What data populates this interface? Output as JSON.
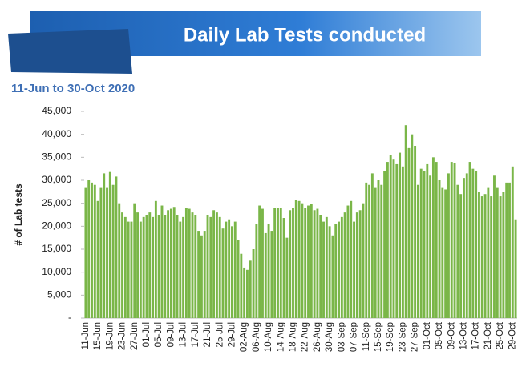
{
  "chart_data": {
    "type": "bar",
    "title": "Daily Lab Tests conducted",
    "subtitle": "11-Jun to 30-Oct  2020",
    "y_label": "# of Lab tests",
    "color": "#7ab648",
    "categories": [
      "11-Jun",
      null,
      null,
      null,
      "15-Jun",
      null,
      null,
      null,
      "19-Jun",
      null,
      null,
      null,
      "23-Jun",
      null,
      null,
      null,
      "27-Jun",
      null,
      null,
      null,
      "01-Jul",
      null,
      null,
      null,
      "05-Jul",
      null,
      null,
      null,
      "09-Jul",
      null,
      null,
      null,
      "13-Jul",
      null,
      null,
      null,
      "17-Jul",
      null,
      null,
      null,
      "21-Jul",
      null,
      null,
      null,
      "25-Jul",
      null,
      null,
      null,
      "29-Jul",
      null,
      null,
      null,
      "02-Aug",
      null,
      null,
      null,
      "06-Aug",
      null,
      null,
      null,
      "10-Aug",
      null,
      null,
      null,
      "14-Aug",
      null,
      null,
      null,
      "18-Aug",
      null,
      null,
      null,
      "22-Aug",
      null,
      null,
      null,
      "26-Aug",
      null,
      null,
      null,
      "30-Aug",
      null,
      null,
      null,
      "03-Sep",
      null,
      null,
      null,
      "07-Sep",
      null,
      null,
      null,
      "11-Sep",
      null,
      null,
      null,
      "15-Sep",
      null,
      null,
      null,
      "19-Sep",
      null,
      null,
      null,
      "23-Sep",
      null,
      null,
      null,
      "27-Sep",
      null,
      null,
      null,
      "01-Oct",
      null,
      null,
      null,
      "05-Oct",
      null,
      null,
      null,
      "09-Oct",
      null,
      null,
      null,
      "13-Oct",
      null,
      null,
      null,
      "17-Oct",
      null,
      null,
      null,
      "21-Oct",
      null,
      null,
      null,
      "25-Oct",
      null,
      null,
      null,
      "29-Oct",
      null
    ],
    "values": [
      28500,
      30000,
      29500,
      29000,
      25500,
      28500,
      31500,
      28500,
      31800,
      29000,
      30800,
      25000,
      23000,
      22000,
      21000,
      21000,
      25000,
      23000,
      21000,
      22000,
      22500,
      23000,
      22000,
      25500,
      22500,
      24500,
      22500,
      23500,
      23800,
      24200,
      22500,
      21000,
      22000,
      24000,
      23800,
      23000,
      22500,
      19000,
      18000,
      19000,
      22500,
      22000,
      23500,
      23000,
      22000,
      19500,
      21000,
      21500,
      20000,
      21000,
      17000,
      14000,
      11000,
      10500,
      12500,
      15000,
      20500,
      24500,
      23800,
      18500,
      20500,
      19000,
      24000,
      24000,
      24000,
      21800,
      17500,
      23500,
      24000,
      25800,
      25500,
      25000,
      24000,
      24500,
      24800,
      23500,
      23800,
      22500,
      21000,
      22000,
      20000,
      18000,
      20500,
      21000,
      22000,
      23000,
      24500,
      25500,
      21000,
      23000,
      23500,
      25000,
      29500,
      29000,
      31500,
      28500,
      30000,
      29000,
      32000,
      34000,
      35500,
      34500,
      33500,
      36000,
      33000,
      42000,
      37000,
      40000,
      37500,
      29000,
      32500,
      32000,
      33500,
      31000,
      35000,
      34000,
      30000,
      28500,
      28000,
      31500,
      34000,
      33800,
      29000,
      27000,
      30500,
      31500,
      34000,
      32500,
      32000,
      27500,
      26500,
      27000,
      28500,
      26500,
      31000,
      28500,
      26500,
      27500,
      29500,
      29500,
      33000,
      21500
    ],
    "ylim": [
      0,
      45000
    ],
    "yticks": [
      {
        "value": 0,
        "label": "-"
      },
      {
        "value": 5000,
        "label": "5,000"
      },
      {
        "value": 10000,
        "label": "10,000"
      },
      {
        "value": 15000,
        "label": "15,000"
      },
      {
        "value": 20000,
        "label": "20,000"
      },
      {
        "value": 25000,
        "label": "25,000"
      },
      {
        "value": 30000,
        "label": "30,000"
      },
      {
        "value": 35000,
        "label": "35,000"
      },
      {
        "value": 40000,
        "label": "40,000"
      },
      {
        "value": 45000,
        "label": "45,000"
      }
    ],
    "grid": false
  }
}
